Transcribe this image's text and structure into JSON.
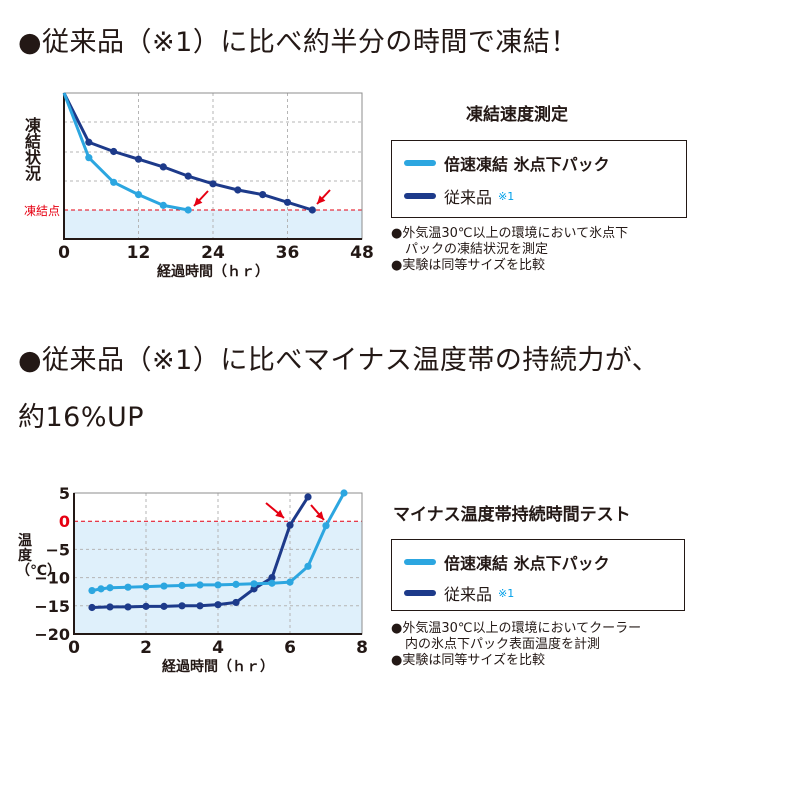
{
  "headline1": "●従来品（※1）に比べ約半分の時間で凍結！",
  "headline2": "●従来品（※1）に比べマイナス温度帯の持続力が、",
  "headline3": "約16%UP",
  "colors": {
    "light": "#2ca6e0",
    "dark": "#1d3a8a",
    "freeze": "#e60012",
    "fill": "#dff0fb"
  },
  "panel1": {
    "title": "凍結速度測定",
    "legend": {
      "item1": "倍速凍結 氷点下パック",
      "item2": "従来品",
      "item2_note": "※1"
    },
    "notes": [
      "●外気温30℃以上の環境において氷点下",
      "パックの凍結状況を測定",
      "●実験は同等サイズを比較"
    ]
  },
  "panel2": {
    "title": "マイナス温度帯持続時間テスト",
    "legend": {
      "item1": "倍速凍結 氷点下パック",
      "item2": "従来品",
      "item2_note": "※1"
    },
    "notes": [
      "●外気温30℃以上の環境においてクーラー",
      "内の氷点下パック表面温度を計測",
      "●実験は同等サイズを比較"
    ]
  },
  "chart_data": [
    {
      "type": "line",
      "xlabel": "経過時間（ｈｒ）",
      "ylabel": "凍結状況",
      "xlim": [
        0,
        48
      ],
      "xticks": [
        "0",
        "12",
        "24",
        "36",
        "48"
      ],
      "reference_line": {
        "label": "凍結点"
      },
      "grid": true,
      "legend_position": "right",
      "series": [
        {
          "name": "倍速凍結 氷点下パック",
          "color": "light",
          "x": [
            0,
            4,
            8,
            12,
            16,
            20
          ],
          "y": [
            100,
            58,
            42,
            34,
            27,
            24
          ]
        },
        {
          "name": "従来品",
          "color": "dark",
          "x": [
            0,
            4,
            8,
            12,
            16,
            20,
            24,
            28,
            32,
            36,
            40
          ],
          "y": [
            100,
            68,
            62,
            57,
            52,
            46,
            41,
            37,
            34,
            29,
            24
          ]
        }
      ]
    },
    {
      "type": "line",
      "xlabel": "経過時間（ｈｒ）",
      "ylabel": "温度（℃）",
      "xlim": [
        0,
        8
      ],
      "ylim": [
        -20,
        5
      ],
      "xticks": [
        "0",
        "2",
        "4",
        "6",
        "8"
      ],
      "yticks": [
        "5",
        "0",
        "−5",
        "−10",
        "−15",
        "−20"
      ],
      "grid": true,
      "legend_position": "right",
      "series": [
        {
          "name": "倍速凍結 氷点下パック",
          "color": "light",
          "x": [
            0.5,
            0.75,
            1,
            1.5,
            2,
            2.5,
            3,
            3.5,
            4,
            4.5,
            5,
            5.5,
            6,
            6.5,
            7,
            7.5
          ],
          "y": [
            -12.3,
            -12,
            -11.8,
            -11.7,
            -11.6,
            -11.5,
            -11.4,
            -11.3,
            -11.3,
            -11.2,
            -11.1,
            -11,
            -10.8,
            -8,
            -0.8,
            5
          ]
        },
        {
          "name": "従来品",
          "color": "dark",
          "x": [
            0.5,
            1,
            1.5,
            2,
            2.5,
            3,
            3.5,
            4,
            4.5,
            5,
            5.5,
            6,
            6.5
          ],
          "y": [
            -15.3,
            -15.2,
            -15.2,
            -15.1,
            -15.1,
            -15,
            -15,
            -14.8,
            -14.4,
            -12,
            -10,
            -0.7,
            4.3
          ]
        }
      ]
    }
  ]
}
